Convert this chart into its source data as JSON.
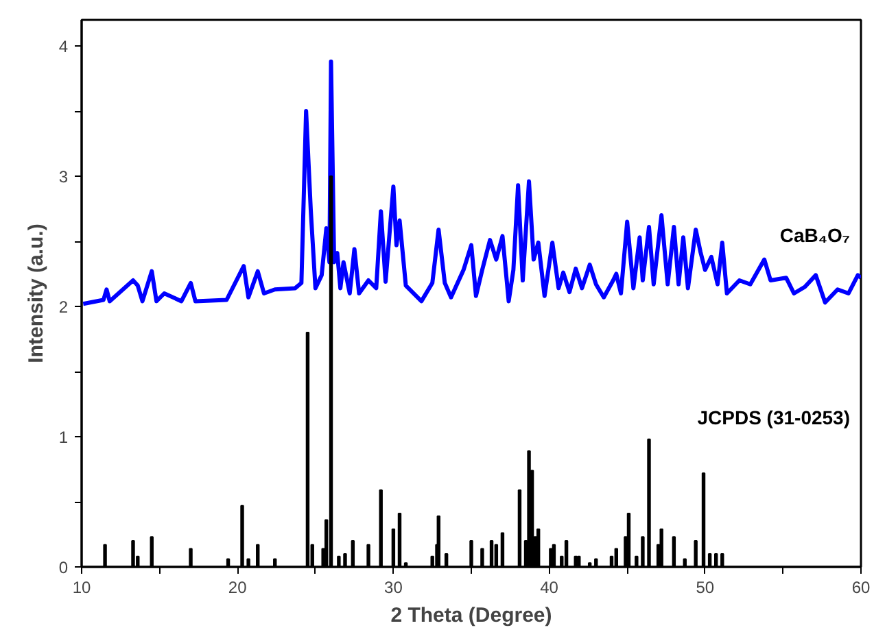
{
  "chart_data": {
    "type": "bar",
    "xlabel": "2 Theta (Degree)",
    "ylabel": "Intensity (a.u.)",
    "xlim": [
      10,
      60
    ],
    "ylim": [
      0,
      4.2
    ],
    "xticks": [
      10,
      {
        "value": 15,
        "label": null
      },
      20,
      {
        "value": 25,
        "label": null
      },
      30,
      {
        "value": 35,
        "label": null
      },
      40,
      {
        "value": 45,
        "label": null
      },
      50,
      {
        "value": 55,
        "label": null
      },
      60
    ],
    "yticks": [
      0,
      {
        "value": 0.5,
        "label": null
      },
      1,
      {
        "value": 1.5,
        "label": null
      },
      2,
      {
        "value": 2.5,
        "label": null
      },
      3,
      {
        "value": 3.5,
        "label": null
      },
      4
    ],
    "grid": false,
    "series": [
      {
        "type": "line",
        "name": "CaB₄O₇",
        "color": "#0000ff",
        "x": [
          10.1,
          11.4,
          11.6,
          11.8,
          13.3,
          13.6,
          13.9,
          14.5,
          14.8,
          15.3,
          16.4,
          17.0,
          17.3,
          19.3,
          20.4,
          20.7,
          21.3,
          21.7,
          22.4,
          23.7,
          24.1,
          24.4,
          24.7,
          25.0,
          25.4,
          25.7,
          25.9,
          26.0,
          26.2,
          26.4,
          26.6,
          26.8,
          27.2,
          27.5,
          27.8,
          28.4,
          28.9,
          29.2,
          29.5,
          30.0,
          30.2,
          30.4,
          30.8,
          31.8,
          32.5,
          32.9,
          33.3,
          33.7,
          34.5,
          35.0,
          35.3,
          35.7,
          36.2,
          36.6,
          37.0,
          37.4,
          37.7,
          38.0,
          38.3,
          38.7,
          39.0,
          39.3,
          39.7,
          40.2,
          40.6,
          40.9,
          41.3,
          41.7,
          42.1,
          42.6,
          43.0,
          43.5,
          44.1,
          44.3,
          44.6,
          45.0,
          45.4,
          45.8,
          46.0,
          46.4,
          46.7,
          47.2,
          47.6,
          48.0,
          48.3,
          48.6,
          48.9,
          49.4,
          49.7,
          50.0,
          50.4,
          50.8,
          51.1,
          51.4,
          52.2,
          52.9,
          53.8,
          54.2,
          55.2,
          55.7,
          56.4,
          57.1,
          57.7,
          58.5,
          59.2,
          59.8,
          60.0
        ],
        "values": [
          2.02,
          2.05,
          2.13,
          2.04,
          2.2,
          2.16,
          2.04,
          2.27,
          2.04,
          2.1,
          2.04,
          2.18,
          2.04,
          2.05,
          2.31,
          2.07,
          2.27,
          2.1,
          2.13,
          2.14,
          2.18,
          3.5,
          2.74,
          2.14,
          2.24,
          2.6,
          2.34,
          3.88,
          2.34,
          2.41,
          2.14,
          2.34,
          2.1,
          2.44,
          2.1,
          2.2,
          2.14,
          2.73,
          2.19,
          2.92,
          2.47,
          2.66,
          2.16,
          2.04,
          2.18,
          2.59,
          2.18,
          2.07,
          2.28,
          2.47,
          2.08,
          2.28,
          2.51,
          2.36,
          2.54,
          2.04,
          2.28,
          2.93,
          2.2,
          2.96,
          2.36,
          2.49,
          2.08,
          2.49,
          2.14,
          2.26,
          2.11,
          2.29,
          2.14,
          2.32,
          2.17,
          2.07,
          2.2,
          2.25,
          2.1,
          2.65,
          2.14,
          2.53,
          2.2,
          2.61,
          2.17,
          2.7,
          2.17,
          2.61,
          2.17,
          2.53,
          2.14,
          2.59,
          2.42,
          2.28,
          2.38,
          2.17,
          2.49,
          2.1,
          2.2,
          2.17,
          2.36,
          2.2,
          2.22,
          2.1,
          2.15,
          2.24,
          2.03,
          2.13,
          2.1,
          2.24,
          2.22
        ]
      },
      {
        "name": "JCPDS (31-0253)",
        "color": "#000000",
        "x": [
          11.5,
          13.3,
          13.6,
          14.5,
          17.0,
          19.4,
          20.3,
          20.7,
          21.3,
          22.4,
          24.5,
          24.8,
          25.5,
          25.7,
          26.0,
          26.5,
          26.9,
          27.4,
          28.4,
          29.2,
          30.0,
          30.4,
          30.8,
          32.5,
          32.8,
          32.9,
          33.4,
          35.0,
          35.7,
          36.3,
          36.6,
          37.0,
          38.1,
          38.5,
          38.7,
          38.9,
          39.1,
          39.3,
          40.1,
          40.3,
          40.8,
          41.1,
          41.7,
          41.9,
          42.6,
          43.0,
          44.0,
          44.3,
          44.9,
          45.1,
          45.6,
          46.0,
          46.4,
          47.0,
          47.2,
          48.0,
          48.7,
          49.4,
          49.9,
          50.3,
          50.7,
          51.1
        ],
        "values": [
          0.17,
          0.2,
          0.08,
          0.23,
          0.14,
          0.06,
          0.47,
          0.06,
          0.17,
          0.06,
          1.8,
          0.17,
          0.14,
          0.36,
          3.0,
          0.08,
          0.1,
          0.2,
          0.17,
          0.59,
          0.29,
          0.41,
          0.03,
          0.08,
          0.17,
          0.39,
          0.1,
          0.2,
          0.14,
          0.2,
          0.17,
          0.26,
          0.59,
          0.2,
          0.89,
          0.74,
          0.23,
          0.29,
          0.14,
          0.17,
          0.08,
          0.2,
          0.08,
          0.08,
          0.03,
          0.06,
          0.08,
          0.14,
          0.23,
          0.41,
          0.08,
          0.23,
          0.98,
          0.17,
          0.29,
          0.23,
          0.06,
          0.2,
          0.72,
          0.1,
          0.1,
          0.1
        ]
      }
    ]
  }
}
